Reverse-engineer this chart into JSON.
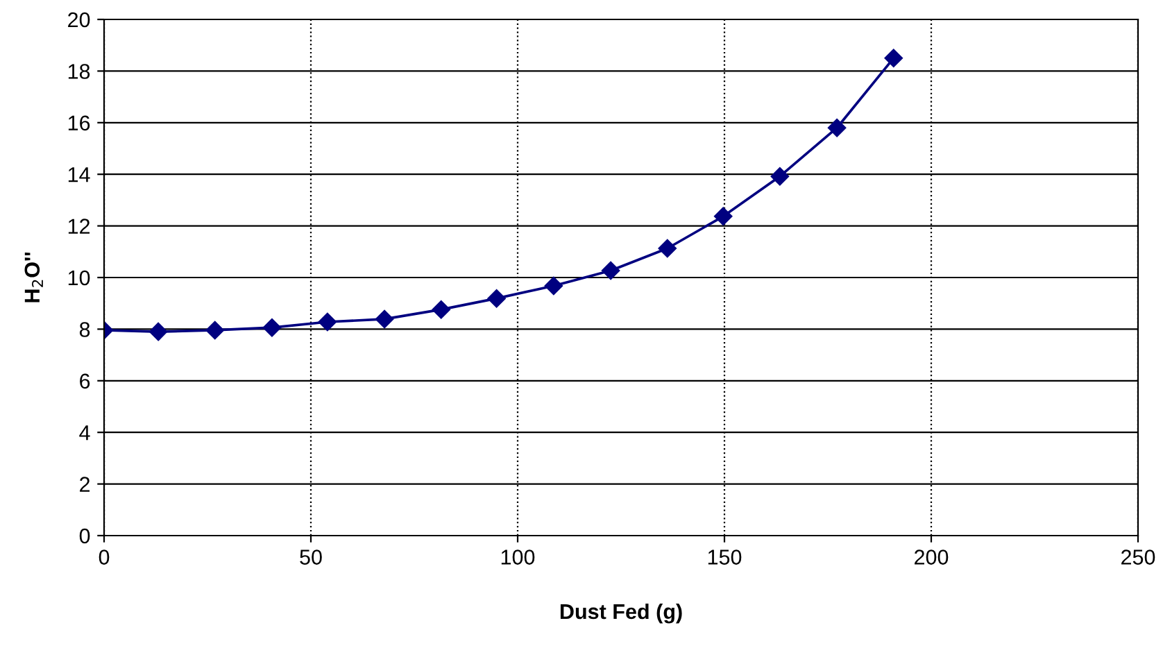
{
  "chart_data": {
    "type": "line",
    "xlabel": "Dust Fed (g)",
    "ylabel": "H$_{2}$O''",
    "x": [
      0,
      13.1,
      26.8,
      40.6,
      54,
      67.8,
      81.5,
      94.9,
      108.7,
      122.5,
      136.2,
      149.7,
      163.4,
      177.2,
      190.9
    ],
    "series": [
      {
        "color": "#000080",
        "values": [
          7.96,
          7.9,
          7.96,
          8.06,
          8.28,
          8.39,
          8.76,
          9.19,
          9.68,
          10.27,
          11.13,
          12.37,
          13.92,
          15.8,
          18.5
        ]
      }
    ],
    "xlim": [
      0,
      250
    ],
    "xticks": [
      0,
      50,
      100,
      150,
      200,
      250
    ],
    "ylim": [
      0,
      20
    ],
    "yticks": [
      0,
      2,
      4,
      6,
      8,
      10,
      12,
      14,
      16,
      18,
      20
    ],
    "grid": true,
    "marker": "diamond",
    "line_style": "solid",
    "legend": false
  }
}
